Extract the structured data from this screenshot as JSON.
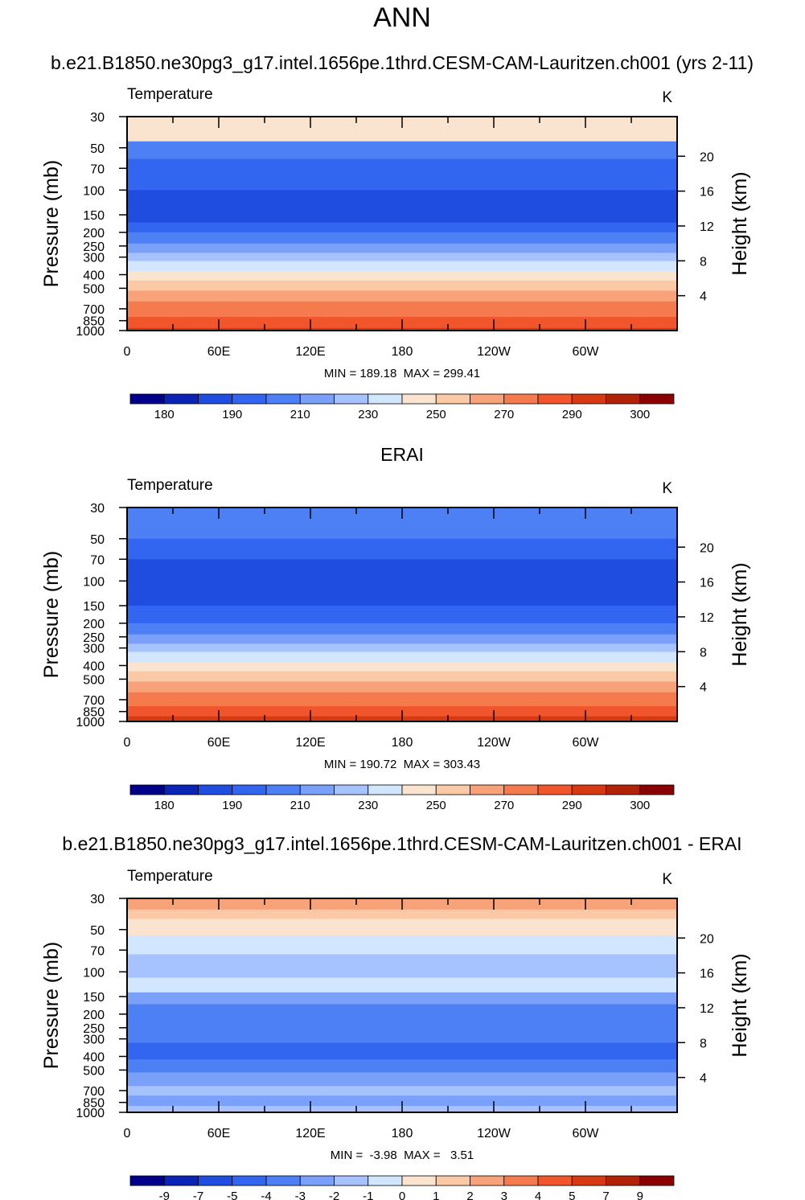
{
  "page": {
    "main_title": "ANN",
    "panel1_title": "b.e21.B1850.ne30pg3_g17.intel.1656pe.1thrd.CESM-CAM-Lauritzen.ch001 (yrs 2-11)",
    "panel2_title": "ERAI",
    "panel3_title": "b.e21.B1850.ne30pg3_g17.intel.1656pe.1thrd.CESM-CAM-Lauritzen.ch001 - ERAI"
  },
  "chart_data": [
    {
      "type": "heatmap",
      "variable_label": "Temperature",
      "units": "K",
      "ylabel": "Pressure (mb)",
      "y2label": "Height (km)",
      "x_ticks": [
        "0",
        "60E",
        "120E",
        "180",
        "120W",
        "60W"
      ],
      "y_ticks": [
        "30",
        "50",
        "70",
        "100",
        "150",
        "200",
        "250",
        "300",
        "400",
        "500",
        "700",
        "850",
        "1000"
      ],
      "y2_ticks": [
        "20",
        "16",
        "12",
        "8",
        "4"
      ],
      "y_scale": "log",
      "ylim": [
        1000,
        30
      ],
      "stats_text": "MIN = 189.18  MAX = 299.41",
      "min": 189.18,
      "max": 299.41,
      "colorbar_labels": [
        "180",
        "190",
        "210",
        "230",
        "250",
        "270",
        "290",
        "300"
      ],
      "colorbar_colors": [
        "#00008b",
        "#0a25b5",
        "#1e4de0",
        "#3366f0",
        "#4d7ff5",
        "#7aa0fa",
        "#a6c2ff",
        "#d2e6ff",
        "#fbe4cf",
        "#fbc9a6",
        "#f7a279",
        "#f57b4f",
        "#f0552b",
        "#d73a12",
        "#b22207",
        "#8b0000"
      ],
      "profile_levels": [
        [
          30,
          8
        ],
        [
          45,
          4
        ],
        [
          60,
          3
        ],
        [
          100,
          2
        ],
        [
          140,
          2
        ],
        [
          170,
          3
        ],
        [
          200,
          4
        ],
        [
          240,
          5
        ],
        [
          280,
          6
        ],
        [
          320,
          7
        ],
        [
          380,
          8
        ],
        [
          440,
          9
        ],
        [
          520,
          10
        ],
        [
          620,
          11
        ],
        [
          800,
          12
        ],
        [
          960,
          13
        ],
        [
          1000,
          13
        ]
      ]
    },
    {
      "type": "heatmap",
      "variable_label": "Temperature",
      "units": "K",
      "ylabel": "Pressure (mb)",
      "y2label": "Height (km)",
      "x_ticks": [
        "0",
        "60E",
        "120E",
        "180",
        "120W",
        "60W"
      ],
      "y_ticks": [
        "30",
        "50",
        "70",
        "100",
        "150",
        "200",
        "250",
        "300",
        "400",
        "500",
        "700",
        "850",
        "1000"
      ],
      "y2_ticks": [
        "20",
        "16",
        "12",
        "8",
        "4"
      ],
      "y_scale": "log",
      "ylim": [
        1000,
        30
      ],
      "stats_text": "MIN = 190.72  MAX = 303.43",
      "min": 190.72,
      "max": 303.43,
      "colorbar_labels": [
        "180",
        "190",
        "210",
        "230",
        "250",
        "270",
        "290",
        "300"
      ],
      "colorbar_colors": [
        "#00008b",
        "#0a25b5",
        "#1e4de0",
        "#3366f0",
        "#4d7ff5",
        "#7aa0fa",
        "#a6c2ff",
        "#d2e6ff",
        "#fbe4cf",
        "#fbc9a6",
        "#f7a279",
        "#f57b4f",
        "#f0552b",
        "#d73a12",
        "#b22207",
        "#8b0000"
      ],
      "profile_levels": [
        [
          30,
          4
        ],
        [
          50,
          3
        ],
        [
          70,
          2
        ],
        [
          100,
          2
        ],
        [
          150,
          3
        ],
        [
          200,
          4
        ],
        [
          240,
          5
        ],
        [
          280,
          6
        ],
        [
          320,
          7
        ],
        [
          380,
          8
        ],
        [
          440,
          9
        ],
        [
          520,
          10
        ],
        [
          620,
          11
        ],
        [
          780,
          12
        ],
        [
          920,
          13
        ],
        [
          1000,
          14
        ]
      ]
    },
    {
      "type": "heatmap",
      "variable_label": "Temperature",
      "units": "K",
      "ylabel": "Pressure (mb)",
      "y2label": "Height (km)",
      "x_ticks": [
        "0",
        "60E",
        "120E",
        "180",
        "120W",
        "60W"
      ],
      "y_ticks": [
        "30",
        "50",
        "70",
        "100",
        "150",
        "200",
        "250",
        "300",
        "400",
        "500",
        "700",
        "850",
        "1000"
      ],
      "y2_ticks": [
        "20",
        "16",
        "12",
        "8",
        "4"
      ],
      "y_scale": "log",
      "ylim": [
        1000,
        30
      ],
      "stats_text": "MIN =  -3.98  MAX =   3.51",
      "min": -3.98,
      "max": 3.51,
      "colorbar_labels": [
        "-9",
        "-7",
        "-5",
        "-4",
        "-3",
        "-2",
        "-1",
        "0",
        "1",
        "2",
        "3",
        "4",
        "5",
        "7",
        "9"
      ],
      "colorbar_colors": [
        "#00008b",
        "#0a25b5",
        "#1e4de0",
        "#3366f0",
        "#4d7ff5",
        "#7aa0fa",
        "#a6c2ff",
        "#d2e6ff",
        "#fbe4cf",
        "#fbc9a6",
        "#f7a279",
        "#f57b4f",
        "#f0552b",
        "#d73a12",
        "#b22207",
        "#8b0000"
      ],
      "profile_levels": [
        [
          30,
          10
        ],
        [
          36,
          9
        ],
        [
          42,
          8
        ],
        [
          55,
          7
        ],
        [
          75,
          6
        ],
        [
          110,
          7
        ],
        [
          140,
          5
        ],
        [
          170,
          4
        ],
        [
          320,
          3
        ],
        [
          420,
          4
        ],
        [
          520,
          5
        ],
        [
          650,
          6
        ],
        [
          760,
          5
        ],
        [
          900,
          6
        ],
        [
          1000,
          6
        ]
      ]
    }
  ]
}
